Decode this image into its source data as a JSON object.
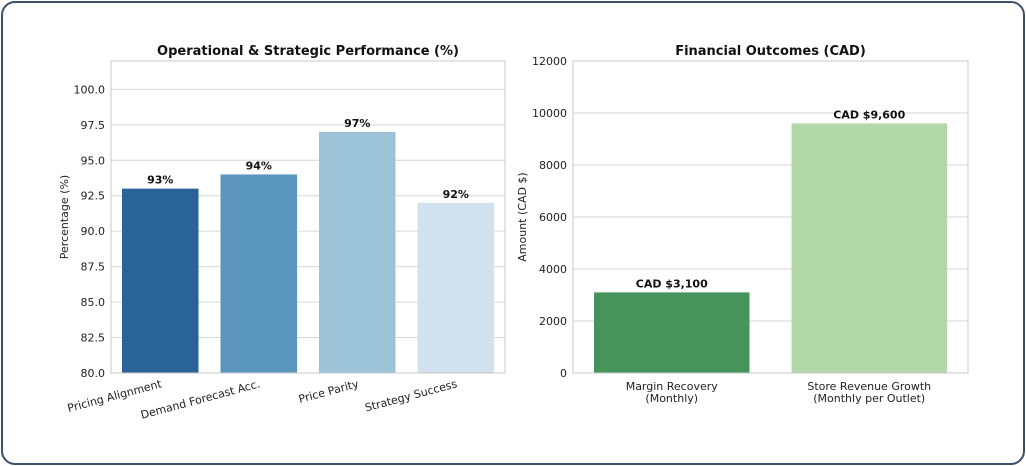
{
  "chart_data": [
    {
      "type": "bar",
      "title": "Operational & Strategic Performance (%)",
      "xlabel": "",
      "ylabel": "Percentage (%)",
      "ylim": [
        80.0,
        102.0
      ],
      "yticks": [
        "80.0",
        "82.5",
        "85.0",
        "87.5",
        "90.0",
        "92.5",
        "95.0",
        "97.5",
        "100.0"
      ],
      "categories": [
        "Pricing Alignment",
        "Demand Forecast Acc.",
        "Price Parity",
        "Strategy Success"
      ],
      "values": [
        93,
        94,
        97,
        92
      ],
      "data_labels": [
        "93%",
        "94%",
        "97%",
        "92%"
      ],
      "colors": [
        "#2a6398",
        "#5b96be",
        "#9dc3d9",
        "#d1e1ee"
      ],
      "grid": "y",
      "xtick_rotation": "rotated"
    },
    {
      "type": "bar",
      "title": "Financial Outcomes (CAD)",
      "xlabel": "",
      "ylabel": "Amount (CAD $)",
      "ylim": [
        0,
        12000
      ],
      "yticks": [
        "0",
        "2000",
        "4000",
        "6000",
        "8000",
        "10000",
        "12000"
      ],
      "categories": [
        [
          "Margin Recovery",
          "(Monthly)"
        ],
        [
          "Store Revenue Growth",
          "(Monthly per Outlet)"
        ]
      ],
      "values": [
        3100,
        9600
      ],
      "data_labels": [
        "CAD $3,100",
        "CAD $9,600"
      ],
      "colors": [
        "#46945c",
        "#b2d8aa"
      ],
      "grid": "y"
    }
  ]
}
